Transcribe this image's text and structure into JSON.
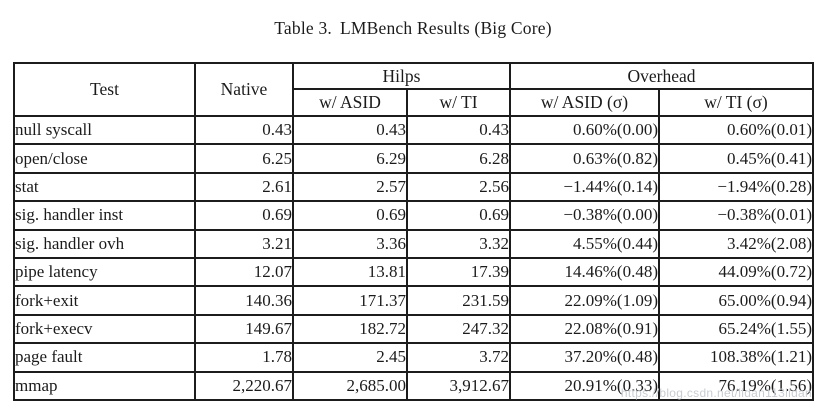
{
  "caption": {
    "label": "Table 3.",
    "title": "LMBench Results (Big Core)"
  },
  "table": {
    "headers": {
      "test": "Test",
      "native": "Native",
      "hilps": "Hilps",
      "overhead": "Overhead",
      "hilps_asid": "w/ ASID",
      "hilps_ti": "w/ TI",
      "overhead_asid": "w/ ASID (σ)",
      "overhead_ti": "w/ TI (σ)"
    },
    "rows": [
      {
        "test": "null syscall",
        "native": "0.43",
        "hilps_asid": "0.43",
        "hilps_ti": "0.43",
        "overhead_asid": "0.60%(0.00)",
        "overhead_ti": "0.60%(0.01)"
      },
      {
        "test": "open/close",
        "native": "6.25",
        "hilps_asid": "6.29",
        "hilps_ti": "6.28",
        "overhead_asid": "0.63%(0.82)",
        "overhead_ti": "0.45%(0.41)"
      },
      {
        "test": "stat",
        "native": "2.61",
        "hilps_asid": "2.57",
        "hilps_ti": "2.56",
        "overhead_asid": "−1.44%(0.14)",
        "overhead_ti": "−1.94%(0.28)"
      },
      {
        "test": "sig. handler inst",
        "native": "0.69",
        "hilps_asid": "0.69",
        "hilps_ti": "0.69",
        "overhead_asid": "−0.38%(0.00)",
        "overhead_ti": "−0.38%(0.01)"
      },
      {
        "test": "sig. handler ovh",
        "native": "3.21",
        "hilps_asid": "3.36",
        "hilps_ti": "3.32",
        "overhead_asid": "4.55%(0.44)",
        "overhead_ti": "3.42%(2.08)"
      },
      {
        "test": "pipe latency",
        "native": "12.07",
        "hilps_asid": "13.81",
        "hilps_ti": "17.39",
        "overhead_asid": "14.46%(0.48)",
        "overhead_ti": "44.09%(0.72)"
      },
      {
        "test": "fork+exit",
        "native": "140.36",
        "hilps_asid": "171.37",
        "hilps_ti": "231.59",
        "overhead_asid": "22.09%(1.09)",
        "overhead_ti": "65.00%(0.94)"
      },
      {
        "test": "fork+execv",
        "native": "149.67",
        "hilps_asid": "182.72",
        "hilps_ti": "247.32",
        "overhead_asid": "22.08%(0.91)",
        "overhead_ti": "65.24%(1.55)"
      },
      {
        "test": "page fault",
        "native": "1.78",
        "hilps_asid": "2.45",
        "hilps_ti": "3.72",
        "overhead_asid": "37.20%(0.48)",
        "overhead_ti": "108.38%(1.21)"
      },
      {
        "test": "mmap",
        "native": "2,220.67",
        "hilps_asid": "2,685.00",
        "hilps_ti": "3,912.67",
        "overhead_asid": "20.91%(0.33)",
        "overhead_ti": "76.19%(1.56)"
      }
    ]
  },
  "watermark": "https://blog.csdn.net/lidan113lidan",
  "colors": {
    "text": "#1b1b1b",
    "border": "#1c1c1c",
    "background": "#ffffff",
    "watermark": "#c9cdd1"
  }
}
